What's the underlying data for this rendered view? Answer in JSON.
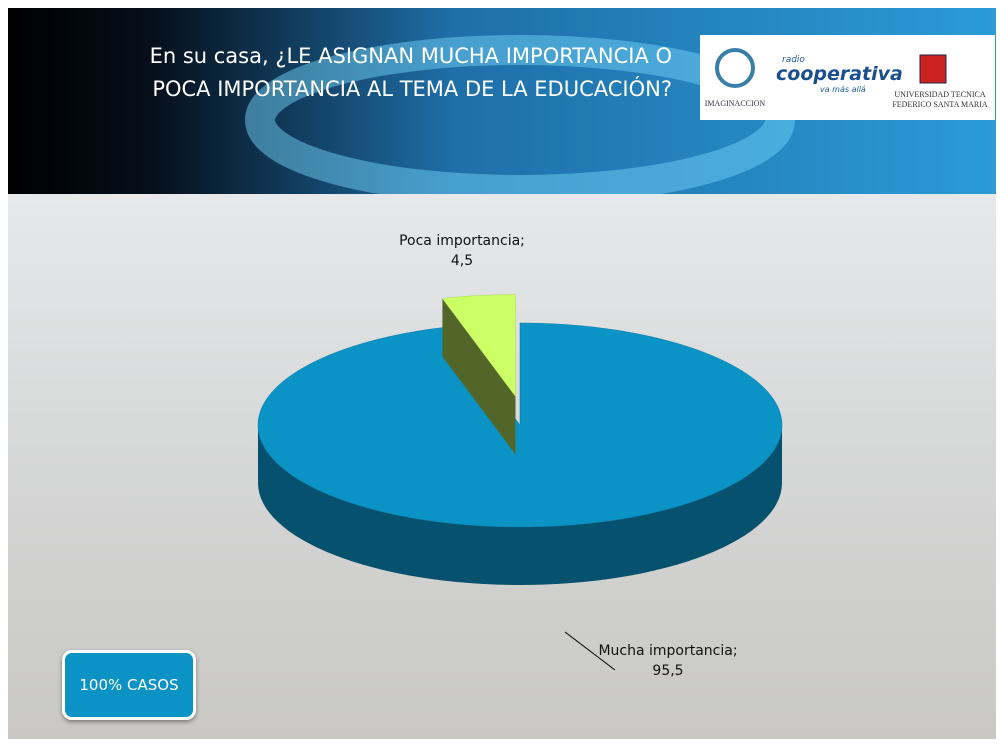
{
  "chart_data": {
    "type": "pie3d",
    "title": "En su casa, ¿LE ASIGNAN MUCHA IMPORTANCIA O POCA IMPORTANCIA AL TEMA DE LA EDUCACIÓN?",
    "categories": [
      "Mucha importancia",
      "Poca importancia"
    ],
    "values": [
      95.5,
      4.5
    ],
    "value_labels": [
      "95,5",
      "4,5"
    ],
    "label_separator": ";",
    "colors": [
      "#0b93c6",
      "#ccff66"
    ],
    "explode": [
      false,
      true
    ]
  },
  "note": "100% CASOS",
  "logos": {
    "imaginaccion": "IMAGINACCION",
    "radio": "radio",
    "cooperativa": "cooperativa",
    "tagline": "va más allá",
    "university_line1": "UNIVERSIDAD TECNICA",
    "university_line2": "FEDERICO SANTA MARIA"
  }
}
